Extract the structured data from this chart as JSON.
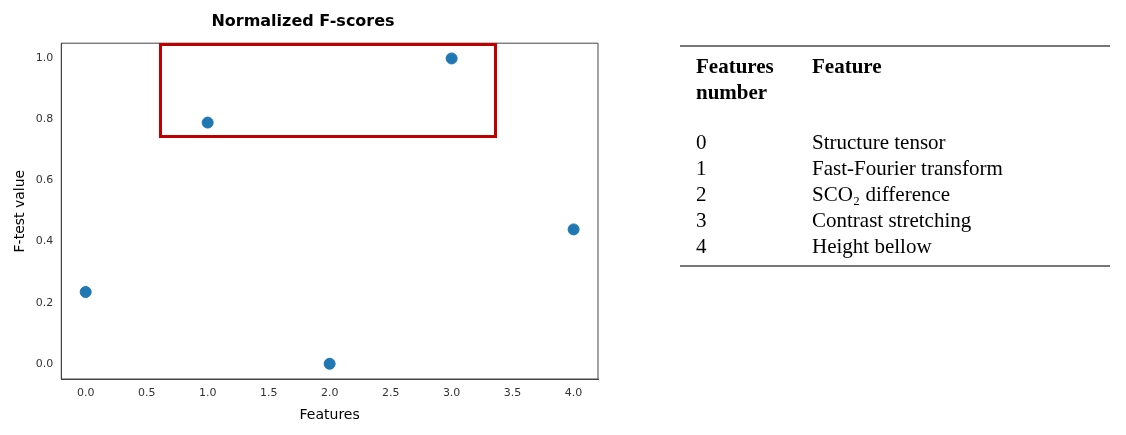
{
  "chart_data": [
    {
      "type": "scatter",
      "title": "Normalized F-scores",
      "xlabel": "Features",
      "ylabel": "F-test value",
      "x": [
        0,
        1,
        2,
        3,
        4
      ],
      "series": [
        {
          "color": "#1f77b4",
          "values": [
            0.235,
            0.79,
            0.0,
            1.0,
            0.44
          ]
        }
      ],
      "xlim": [
        -0.2,
        4.2
      ],
      "ylim": [
        -0.05,
        1.05
      ],
      "xticks": [
        {
          "value": 0,
          "label": "0.0"
        },
        0.5,
        {
          "value": 1,
          "label": "1.0"
        },
        1.5,
        {
          "value": 2,
          "label": "2.0"
        },
        2.5,
        {
          "value": 3,
          "label": "3.0"
        },
        3.5,
        {
          "value": 4,
          "label": "4.0"
        }
      ],
      "yticks": [
        {
          "value": 0,
          "label": "0.0"
        },
        0.2,
        0.4,
        0.6,
        0.8,
        {
          "value": 1,
          "label": "1.0"
        }
      ],
      "grid": false,
      "legend": false,
      "marker": "circle"
    },
    {
      "type": "other",
      "annotations": [
        "Features number",
        "Feature",
        "0",
        "Structure tensor",
        "1",
        "Fast-Fourier transform",
        "2",
        "SCO₂ difference",
        "3",
        "Contrast stretching",
        "4",
        "Height bellow"
      ]
    }
  ]
}
